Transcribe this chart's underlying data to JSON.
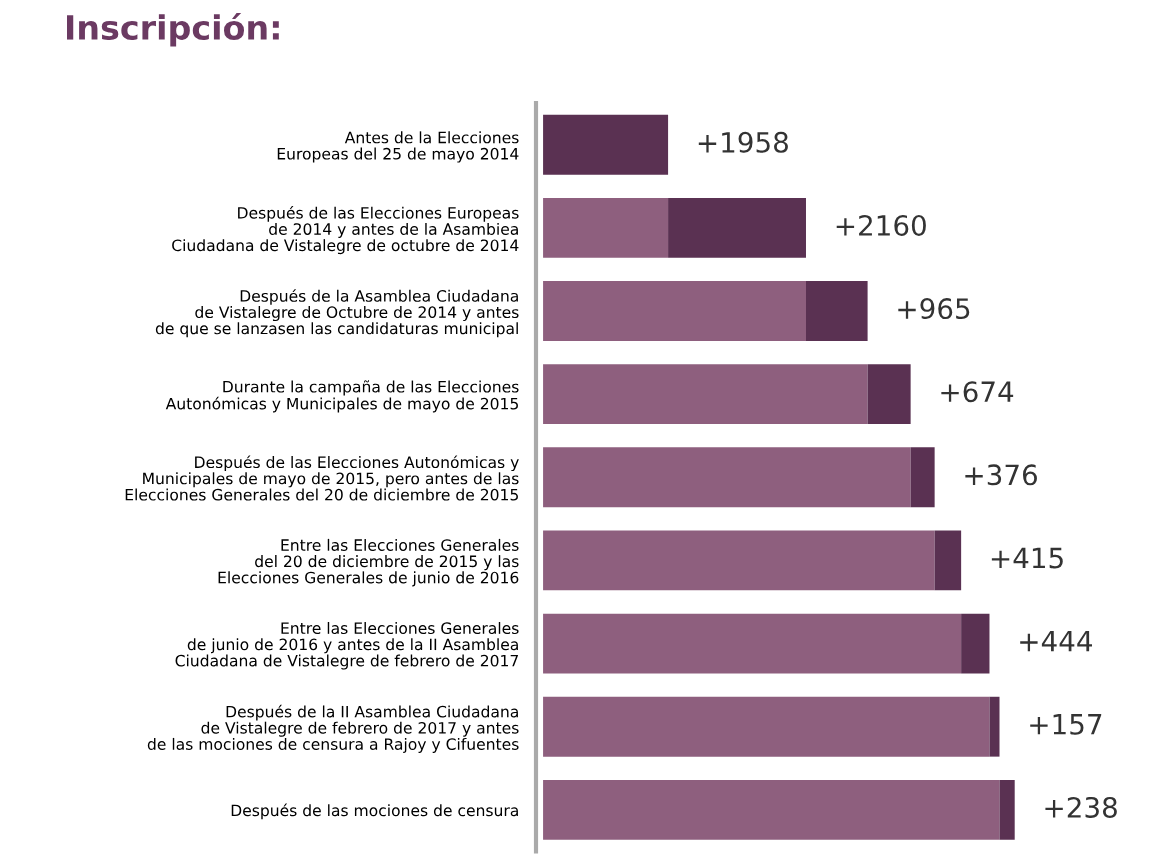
{
  "chart_data": {
    "type": "bar",
    "orientation": "horizontal",
    "stacked": true,
    "title": "Inscripción:",
    "categories": [
      "Antes de la Elecciones\nEuropeas del 25 de mayo 2014",
      "Después de las Elecciones Europeas\nde 2014 y antes de la Asambiea\nCiudadana de Vistalegre de octubre de 2014",
      "Después de la Asamblea Ciudadana\nde Vistalegre de Octubre de 2014 y antes\nde que se lanzasen las candidaturas municipal",
      "Durante la campaña de las Elecciones\nAutonómicas y Municipales de mayo de 2015",
      "Después de las Elecciones Autonómicas y\nMunicipales de mayo de 2015, pero antes de las\nElecciones Generales del 20 de diciembre de 2015",
      "Entre las Elecciones Generales\ndel 20 de diciembre de 2015 y las\nElecciones Generales de junio de 2016",
      "Entre las Elecciones Generales\nde junio de 2016 y antes de la II Asamblea\nCiudadana de Vistalegre de febrero de 2017",
      "Después de la II Asamblea Ciudadana\nde Vistalegre de febrero de 2017 y antes\nde las mociones de censura a Rajoy y Cifuentes",
      "Después de las mociones de censura"
    ],
    "series": [
      {
        "color": "#8e5f7e",
        "values": [
          0,
          1958,
          4118,
          5083,
          5757,
          6133,
          6548,
          6992,
          7149
        ]
      },
      {
        "color": "#5a3152",
        "values": [
          1958,
          2160,
          965,
          674,
          376,
          415,
          444,
          157,
          238
        ],
        "value_labels": [
          "+1958",
          "+2160",
          "+965",
          "+674",
          "+376",
          "+415",
          "+444",
          "+157",
          "+238"
        ]
      }
    ],
    "grid": false,
    "legend": false
  }
}
